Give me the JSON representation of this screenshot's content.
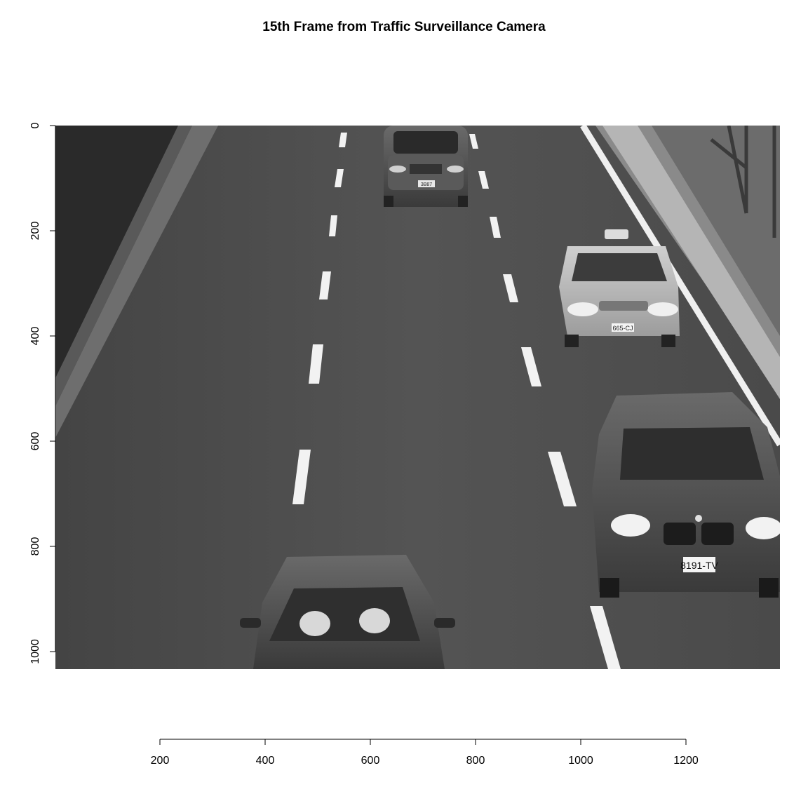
{
  "title": "15th Frame from Traffic Surveillance Camera",
  "x_axis": {
    "ticks": [
      200,
      400,
      600,
      800,
      1000,
      1200
    ],
    "labels": [
      "200",
      "400",
      "600",
      "800",
      "1000",
      "1200"
    ]
  },
  "y_axis": {
    "ticks": [
      0,
      200,
      400,
      600,
      800,
      1000
    ],
    "labels": [
      "0",
      "200",
      "400",
      "600",
      "800",
      "1000"
    ]
  },
  "plates": {
    "suv_top": "3B87",
    "taxi": "665-CJ",
    "bmw": "8191-TV"
  },
  "colors": {
    "asphalt": "#505050",
    "lane_marking": "#f2f2f2",
    "background": "#ffffff"
  }
}
